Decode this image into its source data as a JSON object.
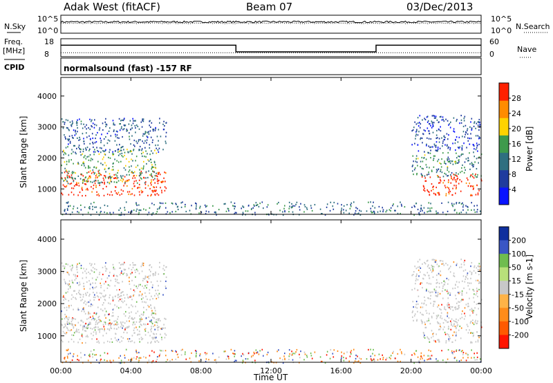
{
  "header": {
    "station": "Adak West (fitACF)",
    "beam": "Beam 07",
    "date": "03/Dec/2013"
  },
  "noise_panel": {
    "left_label": "N.Sky",
    "right_label": "N.Search",
    "tick_top": "10^5",
    "tick_bottom": "10^0"
  },
  "freq_panel": {
    "left_label_1": "Freq.",
    "left_label_2": "[MHz]",
    "left_tick_top": "18",
    "left_tick_bottom": "8",
    "right_label": "Nave",
    "right_tick_top": "60",
    "right_tick_bottom": "0"
  },
  "cpid_panel": {
    "label": "CPID",
    "text": "normalsound (fast) -157 RF"
  },
  "chart_data": [
    {
      "type": "line",
      "name": "noise",
      "x": [
        0,
        24
      ],
      "series": [
        {
          "name": "N.Sky",
          "values": [
            3.2,
            3.2
          ],
          "style": "solid"
        },
        {
          "name": "N.Search",
          "values": [
            2.8,
            2.8
          ],
          "style": "dotted"
        }
      ],
      "ylim": [
        0,
        5
      ]
    },
    {
      "type": "line",
      "name": "frequency-nave",
      "x": [
        0,
        10,
        10,
        18,
        18,
        24
      ],
      "series": [
        {
          "name": "Freq.",
          "values": [
            14.5,
            14.5,
            10.5,
            10.5,
            14.5,
            14.5
          ],
          "style": "solid"
        },
        {
          "name": "Nave",
          "values": [
            12,
            12,
            12,
            12,
            12,
            12
          ],
          "style": "dotted"
        }
      ],
      "ylim_left": [
        8,
        18
      ],
      "ylim_right": [
        0,
        60
      ]
    },
    {
      "type": "heatmap",
      "name": "power",
      "ylabel": "Slant Range [km]",
      "ylim": [
        180,
        4600
      ],
      "yticks": [
        1000,
        2000,
        3000,
        4000
      ],
      "colorbar": {
        "label": "Power [dB]",
        "ticks": [
          "4",
          "8",
          "12",
          "16",
          "20",
          "24",
          "28"
        ],
        "colors": [
          "#0a14ff",
          "#203c9e",
          "#2f6f80",
          "#3e9a4c",
          "#ffd300",
          "#ff8c00",
          "#ff2000"
        ],
        "range": [
          0,
          32
        ]
      }
    },
    {
      "type": "heatmap",
      "name": "velocity",
      "ylabel": "Slant Range [km]",
      "ylim": [
        180,
        4600
      ],
      "yticks": [
        1000,
        2000,
        3000,
        4000
      ],
      "xlabel": "Time UT",
      "xticks": [
        "00:00",
        "04:00",
        "08:00",
        "12:00",
        "16:00",
        "20:00",
        "00:00"
      ],
      "colorbar": {
        "label": "Velocity [m s-1]",
        "ticks": [
          "200",
          "100",
          "50",
          "15",
          "-15",
          "-50",
          "-100",
          "-200"
        ],
        "colors": [
          "#0f2f9e",
          "#3a56c5",
          "#6fbd4f",
          "#b8e07a",
          "#c8c8c8",
          "#ffb347",
          "#ff8c1a",
          "#ff5a00",
          "#ff1500"
        ]
      }
    }
  ],
  "scatter_regions": [
    {
      "t0": 0.0,
      "t1": 6.0,
      "r0": 800,
      "r1": 1600,
      "level": 28
    },
    {
      "t0": 0.0,
      "t1": 5.5,
      "r0": 1200,
      "r1": 2300,
      "level": 14
    },
    {
      "t0": 0.0,
      "t1": 6.0,
      "r0": 2200,
      "r1": 3300,
      "level": 8
    },
    {
      "t0": 20.6,
      "t1": 24.0,
      "r0": 800,
      "r1": 1500,
      "level": 28
    },
    {
      "t0": 20.0,
      "t1": 24.0,
      "r0": 1400,
      "r1": 2200,
      "level": 12
    },
    {
      "t0": 20.0,
      "t1": 24.0,
      "r0": 2200,
      "r1": 3400,
      "level": 6
    },
    {
      "t0": 0.0,
      "t1": 24.0,
      "r0": 180,
      "r1": 600,
      "level": 10
    }
  ]
}
